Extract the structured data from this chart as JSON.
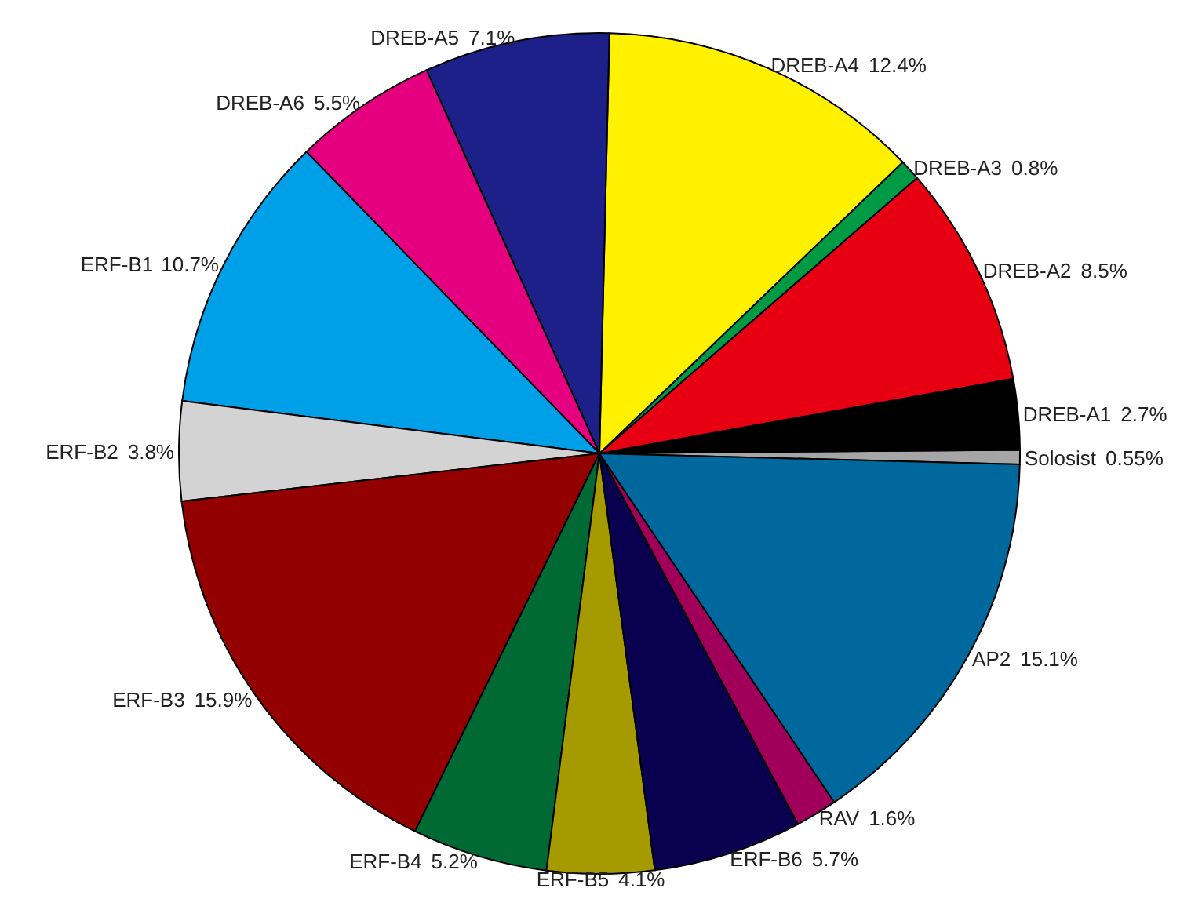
{
  "chart_data": {
    "type": "pie",
    "categories": [
      "Solosist",
      "DREB-A1",
      "DREB-A2",
      "DREB-A3",
      "DREB-A4",
      "DREB-A5",
      "DREB-A6",
      "ERF-B1",
      "ERF-B2",
      "ERF-B3",
      "ERF-B4",
      "ERF-B5",
      "ERF-B6",
      "RAV",
      "AP2"
    ],
    "values": [
      0.55,
      2.7,
      8.5,
      0.8,
      12.4,
      7.1,
      5.5,
      10.7,
      3.8,
      15.9,
      5.2,
      4.1,
      5.7,
      1.6,
      15.1
    ],
    "colors": [
      "#a6a6a6",
      "#000000",
      "#e60012",
      "#009944",
      "#fff100",
      "#1d2088",
      "#e4007f",
      "#00a0e9",
      "#d3d3d3",
      "#920000",
      "#006934",
      "#a59b00",
      "#0a0050",
      "#a0005a",
      "#00689d"
    ],
    "value_labels": [
      "0.55%",
      "2.7%",
      "8.5%",
      "0.8%",
      "12.4%",
      "7.1%",
      "5.5%",
      "10.7%",
      "3.8%",
      "15.9%",
      "5.2%",
      "4.1%",
      "5.7%",
      "1.6%",
      "15.1%"
    ]
  }
}
